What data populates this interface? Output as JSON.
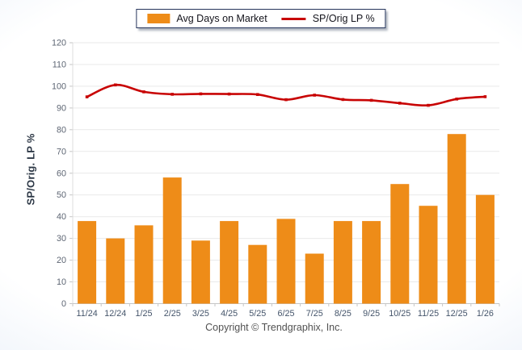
{
  "footer": {
    "text": "Copyright © Trendgraphix, Inc."
  },
  "chart_data": {
    "type": "combo",
    "categories": [
      "11/24",
      "12/24",
      "1/25",
      "2/25",
      "3/25",
      "4/25",
      "5/25",
      "6/25",
      "7/25",
      "8/25",
      "9/25",
      "10/25",
      "11/25",
      "12/25",
      "1/26"
    ],
    "series": [
      {
        "name": "Avg Days on Market",
        "type": "bar",
        "color": "#EE8C18",
        "values": [
          38,
          30,
          36,
          58,
          29,
          38,
          27,
          39,
          23,
          38,
          38,
          55,
          45,
          78,
          50
        ]
      },
      {
        "name": "SP/Orig LP %",
        "type": "line",
        "color": "#C80303",
        "values": [
          95.1,
          100.6,
          97.4,
          96.3,
          96.5,
          96.4,
          96.2,
          93.8,
          95.9,
          93.9,
          93.5,
          92.2,
          91.2,
          94.1,
          95.2
        ]
      }
    ],
    "title": "",
    "xlabel": "",
    "ylabel": "SP/Orig. LP %",
    "ylim": [
      0,
      120
    ],
    "ytick_step": 10,
    "grid": "horizontal",
    "legend_position": "top-center",
    "colors": {
      "gridline": "#e9e9e9",
      "axis": "#c6c6c6",
      "y_tick_label": "#5d6573",
      "x_tick_label": "#44546a",
      "plot_background": "#ffffff"
    }
  }
}
